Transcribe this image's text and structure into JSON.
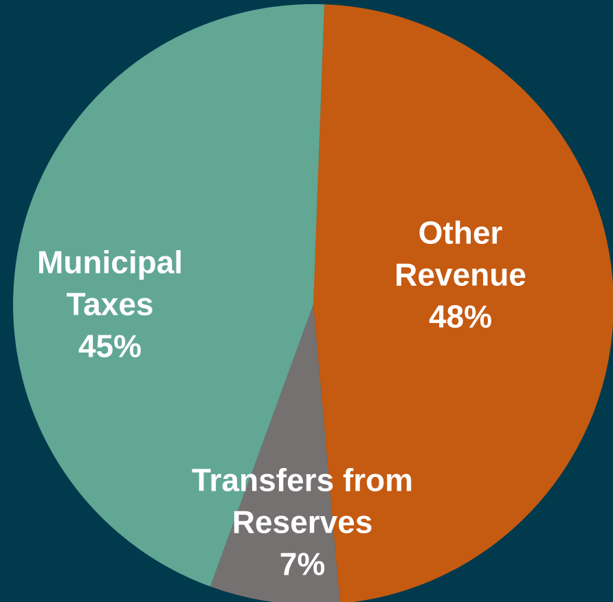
{
  "chart_data": {
    "type": "pie",
    "categories": [
      "Other Revenue",
      "Transfers from Reserves",
      "Municipal Taxes"
    ],
    "values": [
      48,
      7,
      45
    ],
    "value_labels": [
      "48%",
      "7%",
      "45%"
    ],
    "colors": [
      "#c55a11",
      "#767171",
      "#61a794"
    ]
  }
}
